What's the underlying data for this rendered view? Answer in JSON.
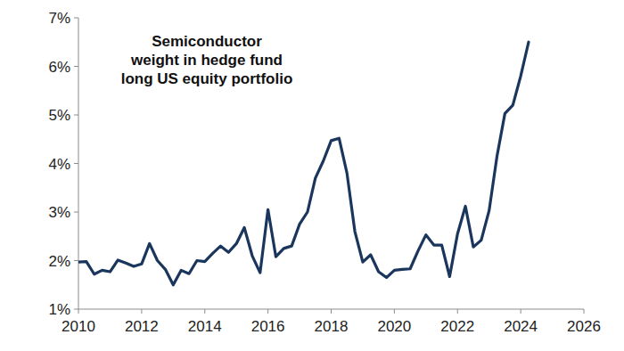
{
  "chart_data": {
    "type": "line",
    "title": "Semiconductor\nweight in hedge fund\nlong US equity portfolio",
    "x": [
      2010,
      2010.25,
      2010.5,
      2010.75,
      2011,
      2011.25,
      2011.5,
      2011.75,
      2012,
      2012.25,
      2012.5,
      2012.75,
      2013,
      2013.25,
      2013.5,
      2013.75,
      2014,
      2014.25,
      2014.5,
      2014.75,
      2015,
      2015.25,
      2015.5,
      2015.75,
      2016,
      2016.25,
      2016.5,
      2016.75,
      2017,
      2017.25,
      2017.5,
      2017.75,
      2018,
      2018.25,
      2018.5,
      2018.75,
      2019,
      2019.25,
      2019.5,
      2019.75,
      2020,
      2020.25,
      2020.5,
      2020.75,
      2021,
      2021.25,
      2021.5,
      2021.75,
      2022,
      2022.25,
      2022.5,
      2022.75,
      2023,
      2023.25,
      2023.5,
      2023.75,
      2024,
      2024.25
    ],
    "values": [
      1.97,
      1.98,
      1.72,
      1.8,
      1.77,
      2.01,
      1.95,
      1.88,
      1.93,
      2.35,
      2.0,
      1.82,
      1.5,
      1.8,
      1.73,
      2.0,
      1.98,
      2.15,
      2.3,
      2.17,
      2.35,
      2.68,
      2.1,
      1.75,
      3.05,
      2.08,
      2.25,
      2.3,
      2.75,
      3.0,
      3.7,
      4.05,
      4.47,
      4.52,
      3.8,
      2.6,
      1.97,
      2.12,
      1.77,
      1.65,
      1.8,
      1.82,
      1.83,
      2.2,
      2.53,
      2.32,
      2.32,
      1.67,
      2.55,
      3.12,
      2.28,
      2.42,
      3.03,
      4.15,
      5.03,
      5.2,
      5.8,
      6.5
    ],
    "color": "#1b365d",
    "xlim": [
      2010,
      2026
    ],
    "xticks": [
      2010,
      2012,
      2014,
      2016,
      2018,
      2020,
      2022,
      2024,
      2026
    ],
    "ylim": [
      1,
      7
    ],
    "yticks": [
      {
        "value": 1,
        "label": "1%"
      },
      {
        "value": 2,
        "label": "2%"
      },
      {
        "value": 3,
        "label": "3%"
      },
      {
        "value": 4,
        "label": "4%"
      },
      {
        "value": 5,
        "label": "5%"
      },
      {
        "value": 6,
        "label": "6%"
      },
      {
        "value": 7,
        "label": "7%"
      }
    ],
    "grid": false
  }
}
